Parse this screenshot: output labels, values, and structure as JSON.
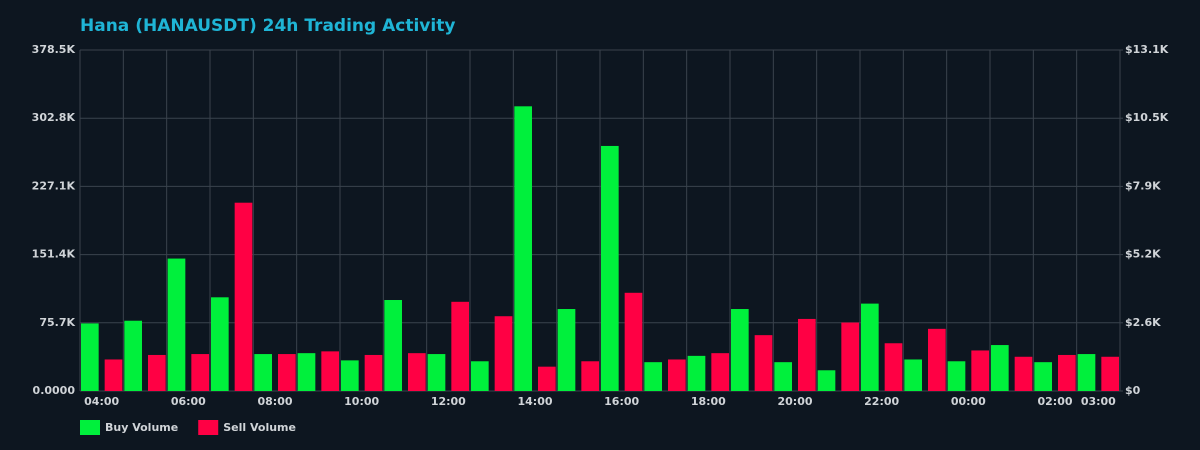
{
  "chart_data": {
    "type": "bar",
    "title": "Hana (HANAUSDT) 24h Trading Activity",
    "categories": [
      "04:00",
      null,
      "06:00",
      null,
      "08:00",
      null,
      "10:00",
      null,
      "12:00",
      null,
      "14:00",
      null,
      "16:00",
      null,
      "18:00",
      null,
      "20:00",
      null,
      "22:00",
      null,
      "00:00",
      null,
      "02:00",
      "03:00"
    ],
    "series": [
      {
        "name": "Buy Volume",
        "color": "#00f03c",
        "values": [
          75000,
          78000,
          147000,
          104000,
          41000,
          42000,
          34000,
          101000,
          41000,
          33000,
          316000,
          91000,
          272000,
          32000,
          39000,
          91000,
          32000,
          23000,
          97000,
          35000,
          33000,
          51000,
          32000,
          41000
        ]
      },
      {
        "name": "Sell Volume",
        "color": "#ff0044",
        "values": [
          35000,
          40000,
          41000,
          209000,
          41000,
          44000,
          40000,
          42000,
          99000,
          83000,
          27000,
          33000,
          109000,
          35000,
          42000,
          62000,
          80000,
          76000,
          53000,
          69000,
          45000,
          38000,
          40000,
          38000
        ]
      }
    ],
    "ylim": [
      0,
      378500
    ],
    "yticks": [
      {
        "value": 0,
        "label": "0.0000"
      },
      {
        "value": 75700,
        "label": "75.7K"
      },
      {
        "value": 151400,
        "label": "151.4K"
      },
      {
        "value": 227100,
        "label": "227.1K"
      },
      {
        "value": 302800,
        "label": "302.8K"
      },
      {
        "value": 378500,
        "label": "378.5K"
      }
    ],
    "y2lim": [
      0,
      13100
    ],
    "y2ticks": [
      {
        "value": 0,
        "label": "$0"
      },
      {
        "value": 2620,
        "label": "$2.6K"
      },
      {
        "value": 5240,
        "label": "$5.2K"
      },
      {
        "value": 7860,
        "label": "$7.9K"
      },
      {
        "value": 10480,
        "label": "$10.5K"
      },
      {
        "value": 13100,
        "label": "$13.1K"
      }
    ],
    "grid": true,
    "legend": "bottom-left"
  }
}
